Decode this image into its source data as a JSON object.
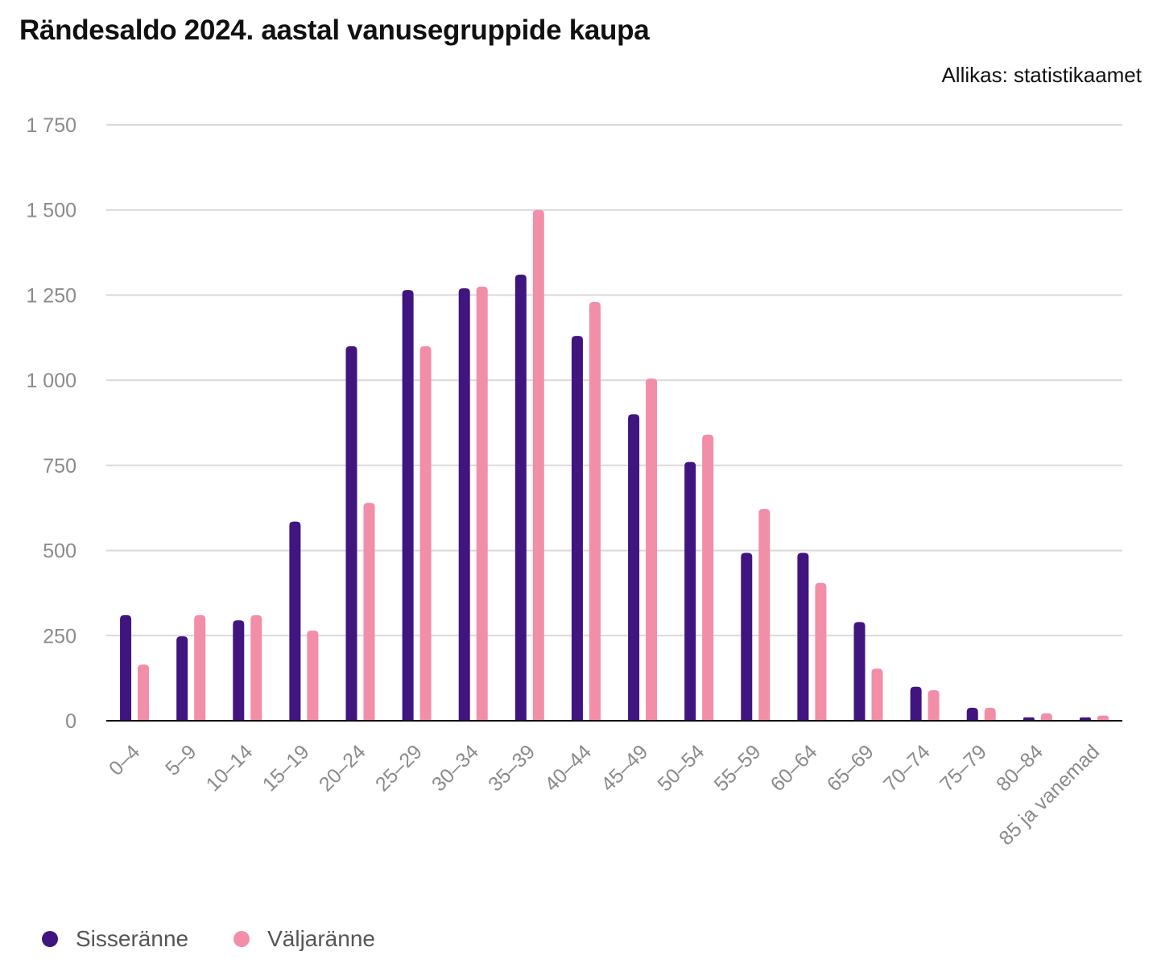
{
  "header": {
    "title": "Rändesaldo 2024. aastal vanusegruppide kaupa",
    "source": "Allikas: statistikaamet"
  },
  "colors": {
    "series1": "#40157f",
    "series2": "#f28ea8",
    "grid": "#d9d9d9",
    "axis": "#111111"
  },
  "chart_data": {
    "type": "bar",
    "categories": [
      "0–4",
      "5–9",
      "10–14",
      "15–19",
      "20–24",
      "25–29",
      "30–34",
      "35–39",
      "40–44",
      "45–49",
      "50–54",
      "55–59",
      "60–64",
      "65–69",
      "70–74",
      "75–79",
      "80–84",
      "85 ja vanemad"
    ],
    "series": [
      {
        "name": "Sisseränne",
        "values": [
          310,
          248,
          295,
          585,
          1100,
          1265,
          1270,
          1310,
          1130,
          900,
          760,
          493,
          493,
          290,
          100,
          38,
          10,
          10
        ]
      },
      {
        "name": "Väljaränne",
        "values": [
          165,
          310,
          310,
          265,
          640,
          1100,
          1275,
          1500,
          1230,
          1005,
          840,
          622,
          405,
          153,
          90,
          38,
          22,
          15
        ]
      }
    ],
    "yticks": [
      0,
      250,
      500,
      750,
      1000,
      1250,
      1500,
      1750
    ],
    "ytick_labels": [
      "0",
      "250",
      "500",
      "750",
      "1 000",
      "1 250",
      "1 500",
      "1 750"
    ],
    "ylim": [
      0,
      1750
    ],
    "grid": true,
    "legend_position": "bottom-left"
  }
}
